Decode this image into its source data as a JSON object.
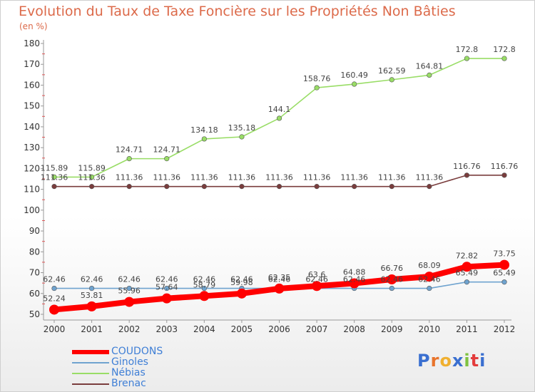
{
  "title": "Evolution du Taux de Taxe Foncière sur les Propriétés Non Bâties",
  "unit_label": "(en %)",
  "logo_text": "Proxiti",
  "chart_data": {
    "type": "line",
    "title": "Evolution du Taux de Taxe Foncière sur les Propriétés Non Bâties",
    "ylabel": "(en %)",
    "x": [
      "2000",
      "2001",
      "2002",
      "2003",
      "2004",
      "2005",
      "2006",
      "2007",
      "2008",
      "2009",
      "2010",
      "2011",
      "2012"
    ],
    "ylim": [
      50,
      180
    ],
    "yticks": [
      50,
      60,
      70,
      80,
      90,
      100,
      110,
      120,
      130,
      140,
      150,
      160,
      170,
      180
    ],
    "grid": false,
    "legend_position": "bottom-left",
    "series": [
      {
        "name": "COUDONS",
        "color": "#ff0000",
        "values": [
          52.24,
          53.81,
          55.96,
          57.64,
          58.79,
          59.98,
          62.35,
          63.6,
          64.88,
          66.76,
          68.09,
          72.82,
          73.75
        ],
        "labels": [
          "52.24",
          "53.81",
          "55.96",
          "57.64",
          "58.79",
          "59.98",
          "62.35",
          "63.6",
          "64.88",
          "66.76",
          "68.09",
          "72.82",
          "73.75"
        ]
      },
      {
        "name": "Ginoles",
        "color": "#6fa3cf",
        "values": [
          62.46,
          62.46,
          62.46,
          62.46,
          62.46,
          62.46,
          62.46,
          62.46,
          62.46,
          62.46,
          62.46,
          65.49,
          65.49
        ],
        "labels": [
          "62.46",
          "62.46",
          "62.46",
          "62.46",
          "62.46",
          "62.46",
          "62.46",
          "62.46",
          "62.46",
          "62.46",
          "62.46",
          "65.49",
          "65.49"
        ]
      },
      {
        "name": "Nébias",
        "color": "#99dd66",
        "values": [
          115.89,
          115.89,
          124.71,
          124.71,
          134.18,
          135.18,
          144.1,
          158.76,
          160.49,
          162.59,
          164.81,
          172.8,
          172.8
        ],
        "labels": [
          "115.89",
          "115.89",
          "124.71",
          "124.71",
          "134.18",
          "135.18",
          "144.1",
          "158.76",
          "160.49",
          "162.59",
          "164.81",
          "172.8",
          "172.8"
        ]
      },
      {
        "name": "Brenac",
        "color": "#7a3d3d",
        "values": [
          111.36,
          111.36,
          111.36,
          111.36,
          111.36,
          111.36,
          111.36,
          111.36,
          111.36,
          111.36,
          111.36,
          116.76,
          116.76
        ],
        "labels": [
          "111.36",
          "111.36",
          "111.36",
          "111.36",
          "111.36",
          "111.36",
          "111.36",
          "111.36",
          "111.36",
          "111.36",
          "111.36",
          "116.76",
          "116.76"
        ]
      }
    ]
  }
}
